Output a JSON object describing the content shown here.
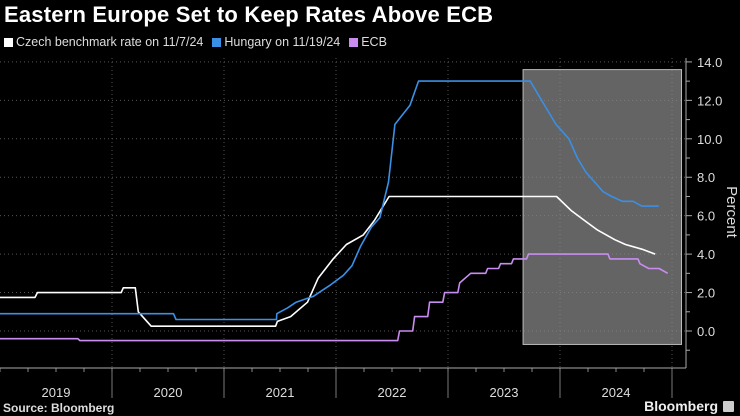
{
  "chart_data": {
    "type": "line",
    "title": "Eastern Europe Set to Keep Rates Above ECB",
    "ylabel": "Percent",
    "xlabel": "",
    "ylim": [
      -1.5,
      14.5
    ],
    "yticks": [
      "14.0",
      "12.0",
      "10.0",
      "8.0",
      "6.0",
      "4.0",
      "2.0",
      "0.0"
    ],
    "ytick_values": [
      14,
      12,
      10,
      8,
      6,
      4,
      2,
      0
    ],
    "xticks": [
      "2019",
      "2020",
      "2021",
      "2022",
      "2023",
      "2024"
    ],
    "xlim": [
      "2019-01-01",
      "2025-01-15"
    ],
    "grid": true,
    "legend_position": "top-left",
    "highlight": {
      "from": "2023-09-01",
      "to": "2025-01-01",
      "ymin": -0.7,
      "ymax": 13.6,
      "color": "#8a8a8a"
    },
    "series": [
      {
        "name": "Czech benchmark rate on 11/7/24",
        "color": "#ffffff",
        "points": [
          [
            "2019-01-01",
            1.75
          ],
          [
            "2019-04-25",
            1.75
          ],
          [
            "2019-05-03",
            2.0
          ],
          [
            "2020-01-31",
            2.0
          ],
          [
            "2020-02-07",
            2.25
          ],
          [
            "2020-03-17",
            2.25
          ],
          [
            "2020-03-27",
            1.0
          ],
          [
            "2020-05-08",
            0.25
          ],
          [
            "2021-06-18",
            0.25
          ],
          [
            "2021-06-24",
            0.5
          ],
          [
            "2021-08-06",
            0.75
          ],
          [
            "2021-09-30",
            1.5
          ],
          [
            "2021-11-04",
            2.75
          ],
          [
            "2021-12-23",
            3.75
          ],
          [
            "2022-02-04",
            4.5
          ],
          [
            "2022-03-31",
            5.0
          ],
          [
            "2022-05-06",
            5.75
          ],
          [
            "2022-06-23",
            7.0
          ],
          [
            "2023-12-21",
            7.0
          ],
          [
            "2024-02-08",
            6.25
          ],
          [
            "2024-03-21",
            5.75
          ],
          [
            "2024-05-03",
            5.25
          ],
          [
            "2024-06-28",
            4.75
          ],
          [
            "2024-08-02",
            4.5
          ],
          [
            "2024-09-26",
            4.25
          ],
          [
            "2024-11-07",
            4.0
          ]
        ]
      },
      {
        "name": "Hungary on 11/19/24",
        "color": "#3a8fe6",
        "points": [
          [
            "2019-01-01",
            0.9
          ],
          [
            "2020-07-20",
            0.9
          ],
          [
            "2020-07-28",
            0.6
          ],
          [
            "2021-06-21",
            0.6
          ],
          [
            "2021-06-22",
            0.9
          ],
          [
            "2021-07-27",
            1.2
          ],
          [
            "2021-08-24",
            1.5
          ],
          [
            "2021-09-21",
            1.65
          ],
          [
            "2021-10-19",
            1.8
          ],
          [
            "2021-11-16",
            2.1
          ],
          [
            "2021-12-14",
            2.4
          ],
          [
            "2022-01-25",
            2.9
          ],
          [
            "2022-02-22",
            3.4
          ],
          [
            "2022-03-22",
            4.4
          ],
          [
            "2022-04-26",
            5.4
          ],
          [
            "2022-05-24",
            5.9
          ],
          [
            "2022-06-21",
            7.75
          ],
          [
            "2022-07-12",
            10.75
          ],
          [
            "2022-08-30",
            11.75
          ],
          [
            "2022-09-27",
            13.0
          ],
          [
            "2023-09-26",
            13.0
          ],
          [
            "2023-10-24",
            12.25
          ],
          [
            "2023-11-21",
            11.5
          ],
          [
            "2023-12-19",
            10.75
          ],
          [
            "2024-01-30",
            10.0
          ],
          [
            "2024-02-27",
            9.0
          ],
          [
            "2024-03-26",
            8.25
          ],
          [
            "2024-04-23",
            7.75
          ],
          [
            "2024-05-21",
            7.25
          ],
          [
            "2024-06-18",
            7.0
          ],
          [
            "2024-07-23",
            6.75
          ],
          [
            "2024-08-27",
            6.75
          ],
          [
            "2024-09-24",
            6.5
          ],
          [
            "2024-11-19",
            6.5
          ]
        ]
      },
      {
        "name": "ECB",
        "color": "#c98cf0",
        "points": [
          [
            "2019-01-01",
            -0.4
          ],
          [
            "2019-09-12",
            -0.4
          ],
          [
            "2019-09-18",
            -0.5
          ],
          [
            "2022-07-21",
            -0.5
          ],
          [
            "2022-07-27",
            0.0
          ],
          [
            "2022-09-08",
            0.0
          ],
          [
            "2022-09-14",
            0.75
          ],
          [
            "2022-10-27",
            0.75
          ],
          [
            "2022-11-02",
            1.5
          ],
          [
            "2022-12-15",
            1.5
          ],
          [
            "2022-12-21",
            2.0
          ],
          [
            "2023-02-02",
            2.0
          ],
          [
            "2023-02-08",
            2.5
          ],
          [
            "2023-03-16",
            3.0
          ],
          [
            "2023-05-04",
            3.0
          ],
          [
            "2023-05-10",
            3.25
          ],
          [
            "2023-06-15",
            3.25
          ],
          [
            "2023-06-21",
            3.5
          ],
          [
            "2023-07-27",
            3.5
          ],
          [
            "2023-08-02",
            3.75
          ],
          [
            "2023-09-14",
            3.75
          ],
          [
            "2023-09-20",
            4.0
          ],
          [
            "2024-06-06",
            4.0
          ],
          [
            "2024-06-12",
            3.75
          ],
          [
            "2024-09-12",
            3.75
          ],
          [
            "2024-09-18",
            3.5
          ],
          [
            "2024-10-17",
            3.25
          ],
          [
            "2024-11-20",
            3.25
          ],
          [
            "2024-12-18",
            3.0
          ]
        ]
      }
    ]
  },
  "footer": {
    "source": "Source: Bloomberg",
    "brand": "Bloomberg"
  }
}
